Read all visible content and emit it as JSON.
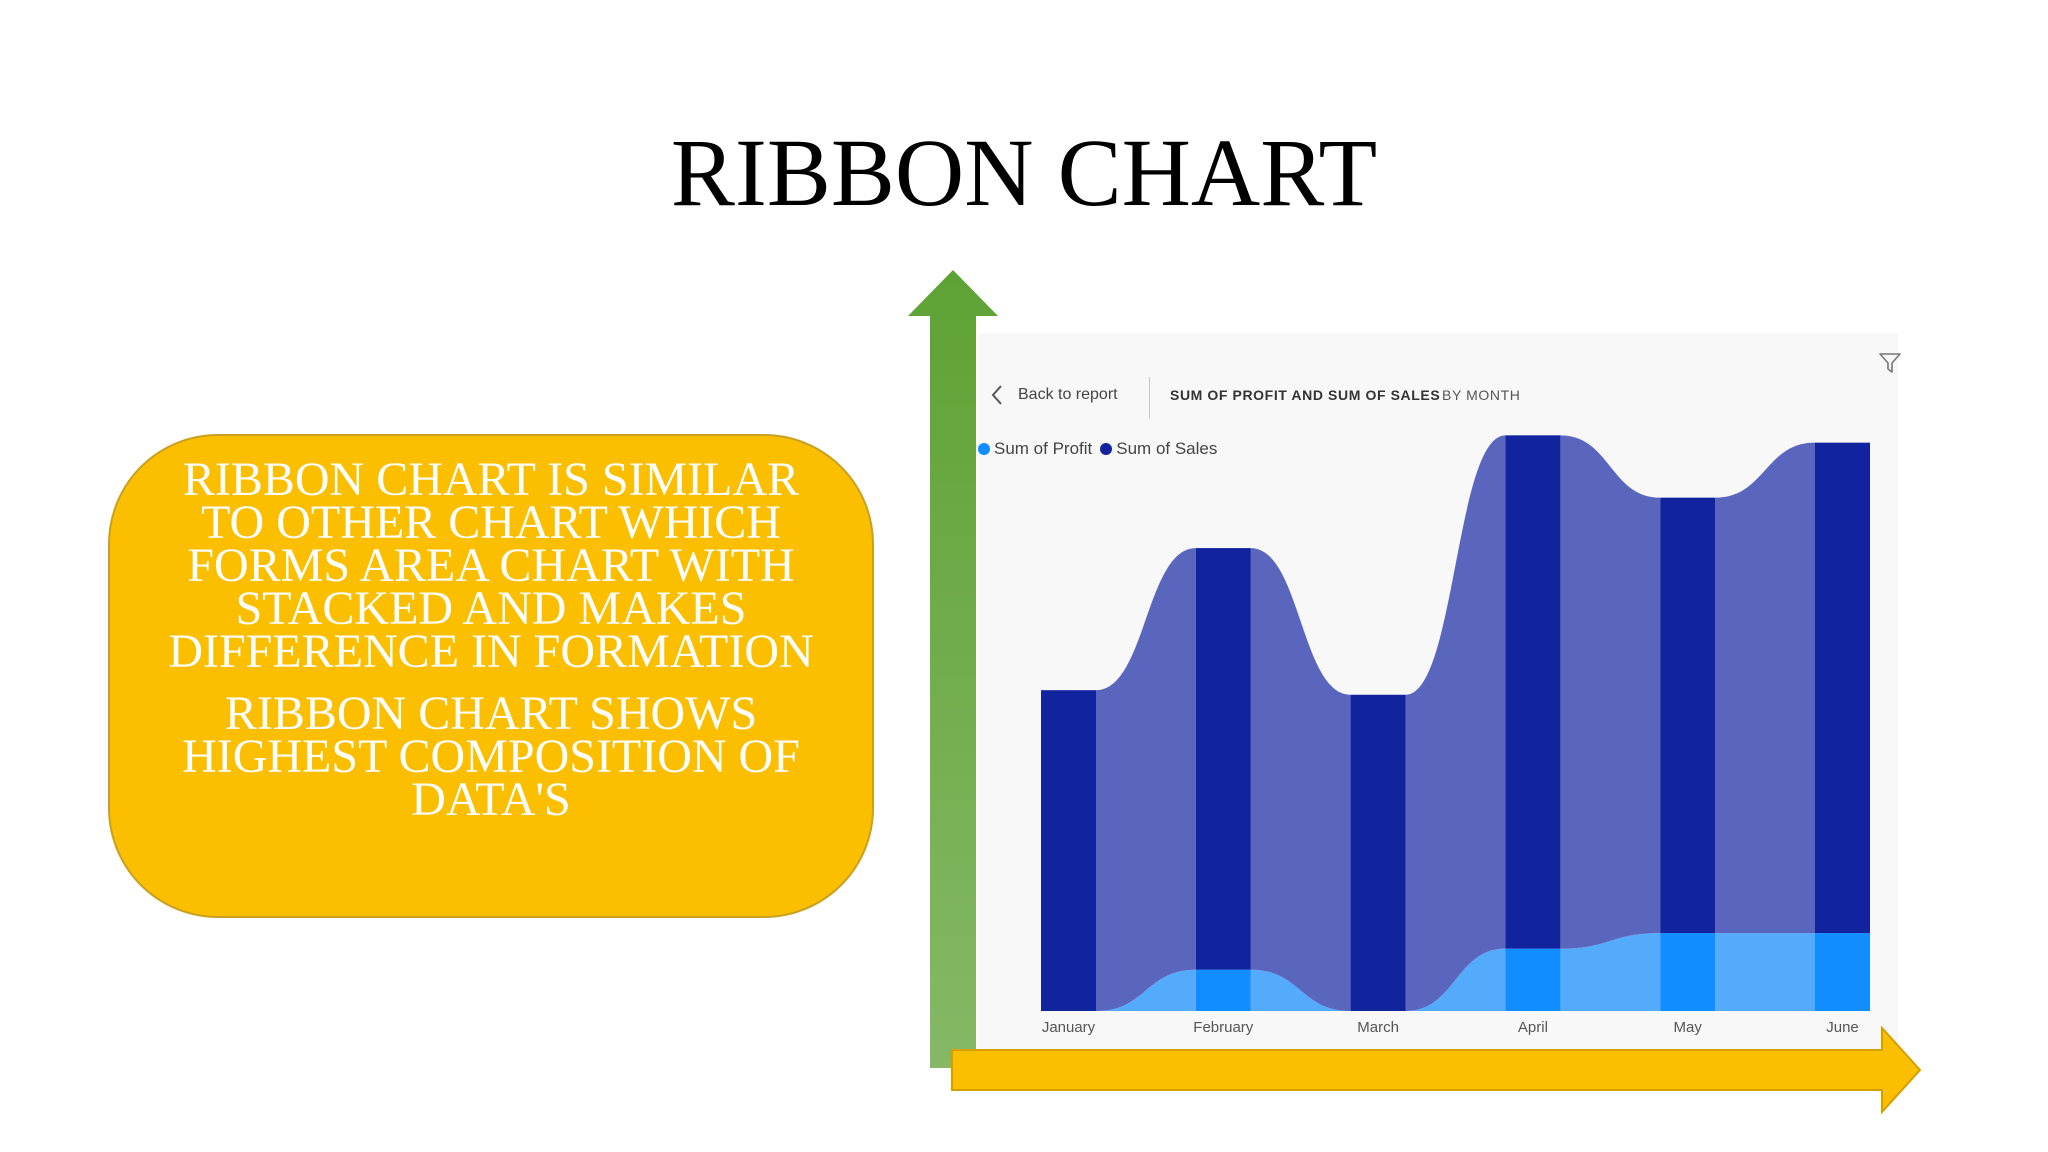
{
  "slide": {
    "title": "RIBBON CHART",
    "callout_paragraphs": [
      "RIBBON CHART IS SIMILAR TO OTHER CHART WHICH FORMS AREA CHART WITH STACKED AND MAKES DIFFERENCE IN FORMATION",
      "RIBBON CHART SHOWS HIGHEST COMPOSITION OF DATA'S"
    ],
    "colors": {
      "callout": "#fbbf00",
      "vertical_arrow": "#6aad45",
      "horizontal_arrow": "#fbbf00"
    }
  },
  "report": {
    "back_label": "Back to report",
    "visual_title": "SUM OF PROFIT AND SUM OF SALES",
    "visual_subtitle": "BY MONTH",
    "icons": {
      "back": "chevron-left-icon",
      "filter": "filter-funnel-icon"
    }
  },
  "chart_data": {
    "type": "ribbon",
    "categories": [
      "January",
      "February",
      "March",
      "April",
      "May",
      "June"
    ],
    "series": [
      {
        "name": "Sum of Profit",
        "values": [
          0,
          4500,
          0,
          6800,
          8500,
          8500
        ],
        "color": "#118dff",
        "ribbon_color": "#55abfb"
      },
      {
        "name": "Sum of Sales",
        "values": [
          35000,
          46000,
          34500,
          56000,
          47500,
          53500
        ],
        "color": "#12239e",
        "ribbon_color": "#5a65bd"
      }
    ],
    "ylim": [
      0,
      60000
    ],
    "legend_position": "top-left",
    "grid": false,
    "x_axis_label_partially_hidden": true
  }
}
